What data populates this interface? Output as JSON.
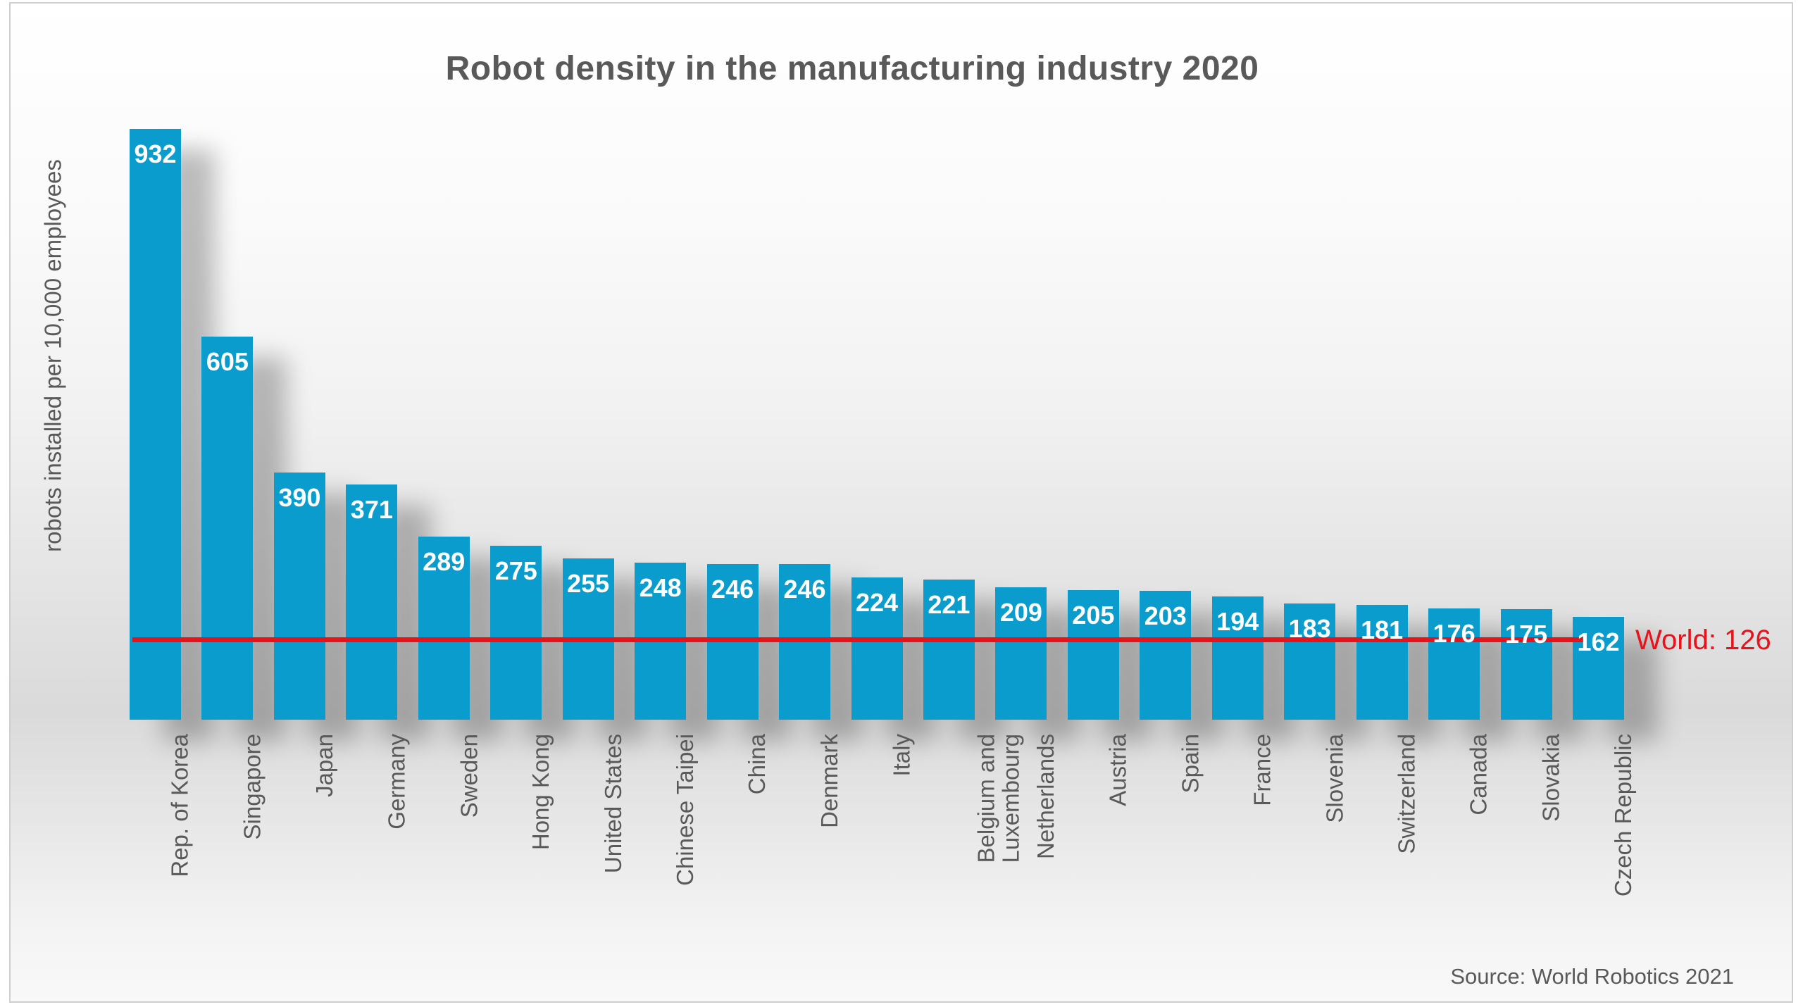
{
  "chart_data": {
    "type": "bar",
    "title": "Robot density in the manufacturing industry 2020",
    "ylabel": "robots installed per 10,000 employees",
    "source_note": "Source: World Robotics 2021",
    "categories": [
      "Rep. of Korea",
      "Singapore",
      "Japan",
      "Germany",
      "Sweden",
      "Hong Kong",
      "United States",
      "Chinese Taipei",
      "China",
      "Denmark",
      "Italy",
      "Belgium and\nLuxembourg",
      "Netherlands",
      "Austria",
      "Spain",
      "France",
      "Slovenia",
      "Switzerland",
      "Canada",
      "Slovakia",
      "Czech Republic"
    ],
    "values": [
      932,
      605,
      390,
      371,
      289,
      275,
      255,
      248,
      246,
      246,
      224,
      221,
      209,
      205,
      203,
      194,
      183,
      181,
      176,
      175,
      162
    ],
    "reference_line": {
      "label": "World: 126",
      "value": 126,
      "color": "#e8131a"
    },
    "bar_color": "#0a9ccd",
    "value_label_color": "#ffffff",
    "axis_text_color": "#595959",
    "ylim": [
      0,
      960
    ],
    "grid": false,
    "legend": "none"
  }
}
